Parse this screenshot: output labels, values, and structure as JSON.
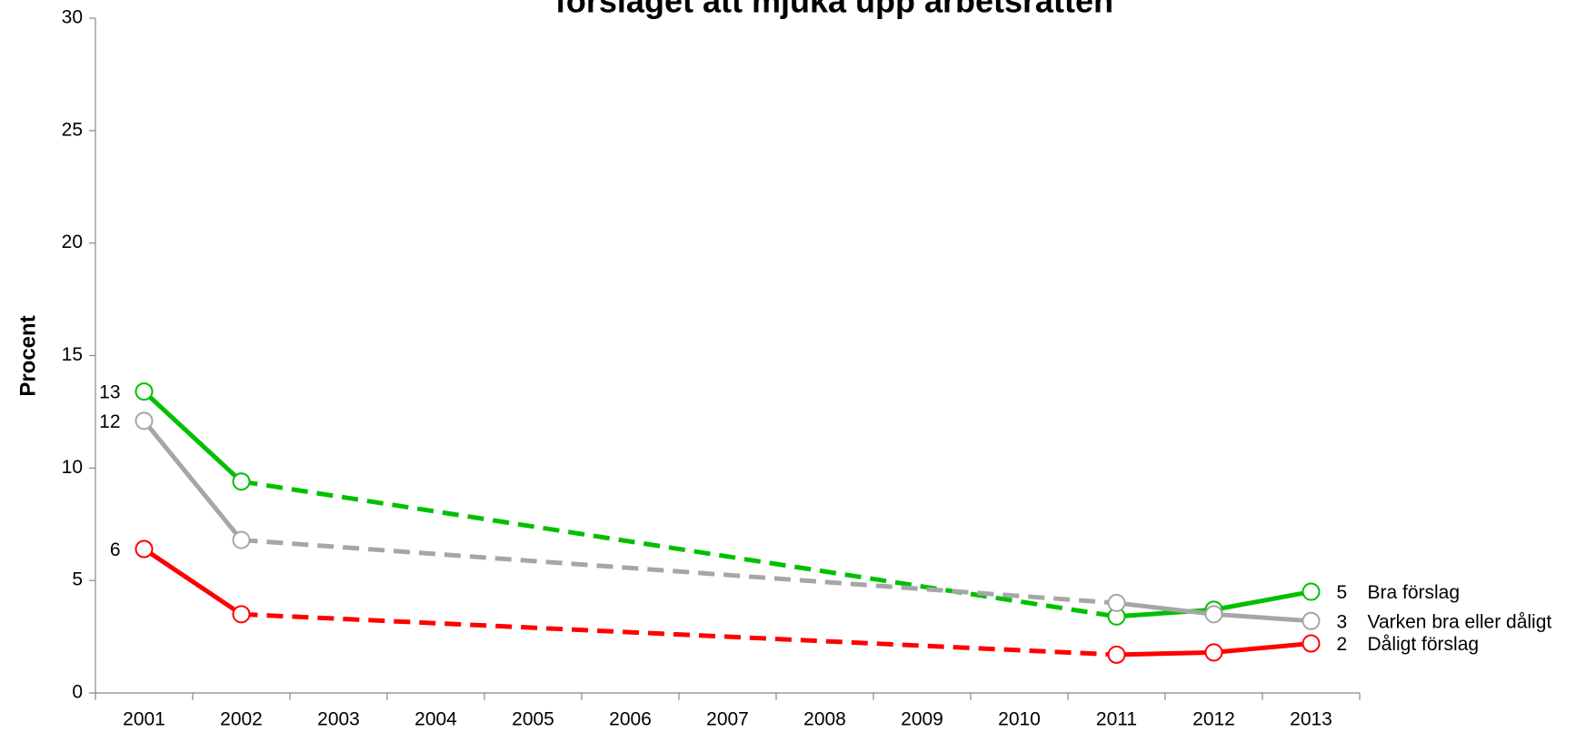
{
  "chart_data": {
    "type": "line",
    "title": "förslaget att mjuka upp arbetsrätten",
    "y_label": "Procent",
    "categories": [
      "2001",
      "2002",
      "2003",
      "2004",
      "2005",
      "2006",
      "2007",
      "2008",
      "2009",
      "2010",
      "2011",
      "2012",
      "2013"
    ],
    "ylim": [
      0,
      30
    ],
    "yticks": [
      0,
      5,
      10,
      15,
      20,
      25,
      30
    ],
    "series": [
      {
        "name": "Bra förslag",
        "color": "#00c000",
        "values": [
          13.4,
          9.4,
          null,
          null,
          null,
          null,
          null,
          null,
          null,
          null,
          3.4,
          3.7,
          4.5
        ],
        "value_labels": [
          "13",
          null,
          null,
          null,
          null,
          null,
          null,
          null,
          null,
          null,
          null,
          null,
          "5"
        ]
      },
      {
        "name": "Varken bra eller dåligt",
        "color": "#a6a6a6",
        "values": [
          12.1,
          6.8,
          null,
          null,
          null,
          null,
          null,
          null,
          null,
          null,
          4.0,
          3.5,
          3.2
        ],
        "value_labels": [
          "12",
          null,
          null,
          null,
          null,
          null,
          null,
          null,
          null,
          null,
          null,
          null,
          "3"
        ]
      },
      {
        "name": "Dåligt förslag",
        "color": "#ff0000",
        "values": [
          6.4,
          3.5,
          null,
          null,
          null,
          null,
          null,
          null,
          null,
          null,
          1.7,
          1.8,
          2.2
        ],
        "value_labels": [
          "6",
          null,
          null,
          null,
          null,
          null,
          null,
          null,
          null,
          null,
          null,
          null,
          "2"
        ]
      }
    ]
  }
}
